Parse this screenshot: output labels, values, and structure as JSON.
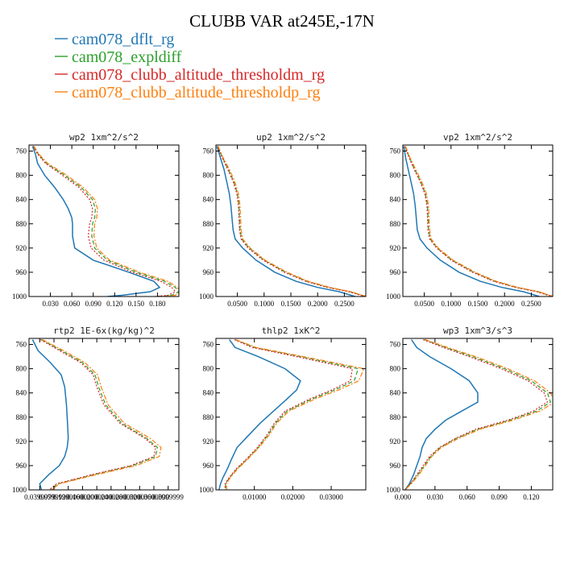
{
  "title": "CLUBB VAR at245E,-17N",
  "legend": [
    {
      "name": "cam078_dflt_rg",
      "color": "#1f77b4",
      "dash": "solid"
    },
    {
      "name": "cam078_expldiff",
      "color": "#2ca02c",
      "dash": "dash"
    },
    {
      "name": "cam078_clubb_altitude_thresholdm_rg",
      "color": "#d62728",
      "dash": "dot"
    },
    {
      "name": "cam078_clubb_altitude_thresholdp_rg",
      "color": "#ff7f0e",
      "dash": "dashdot"
    }
  ],
  "chart_data": [
    {
      "type": "line",
      "title": "wp2  1xm^2/s^2",
      "xlim": [
        0,
        0.21
      ],
      "ylim": [
        1000,
        750
      ],
      "xticks": [
        0.03,
        0.06,
        0.09,
        0.12,
        0.15,
        0.18
      ],
      "xtick_labels": [
        "0.030",
        "0.060",
        "0.090",
        "0.120",
        "0.150",
        "0.180"
      ],
      "yticks": [
        760,
        800,
        840,
        880,
        920,
        960,
        1000
      ],
      "y": [
        752,
        765,
        780,
        800,
        820,
        840,
        855,
        870,
        880,
        900,
        920,
        940,
        960,
        975,
        985,
        992,
        998,
        1000
      ],
      "series": [
        {
          "name": "cam078_dflt_rg",
          "values": [
            0.005,
            0.009,
            0.012,
            0.022,
            0.036,
            0.048,
            0.055,
            0.06,
            0.061,
            0.061,
            0.064,
            0.09,
            0.14,
            0.175,
            0.183,
            0.17,
            0.13,
            0.11
          ]
        },
        {
          "name": "cam078_expldiff",
          "values": [
            0.006,
            0.013,
            0.024,
            0.05,
            0.073,
            0.089,
            0.093,
            0.092,
            0.089,
            0.088,
            0.092,
            0.11,
            0.15,
            0.19,
            0.205,
            0.21,
            0.2,
            0.18
          ]
        },
        {
          "name": "cam078_clubb_altitude_thresholdm_rg",
          "values": [
            0.006,
            0.012,
            0.023,
            0.047,
            0.07,
            0.085,
            0.089,
            0.088,
            0.085,
            0.083,
            0.087,
            0.105,
            0.145,
            0.185,
            0.2,
            0.205,
            0.195,
            0.175
          ]
        },
        {
          "name": "cam078_clubb_altitude_thresholdp_rg",
          "values": [
            0.007,
            0.014,
            0.026,
            0.053,
            0.076,
            0.092,
            0.096,
            0.095,
            0.092,
            0.091,
            0.095,
            0.113,
            0.155,
            0.195,
            0.208,
            0.212,
            0.205,
            0.19
          ]
        }
      ]
    },
    {
      "type": "line",
      "title": "up2  1xm^2/s^2",
      "xlim": [
        0.01,
        0.29
      ],
      "ylim": [
        1000,
        750
      ],
      "xticks": [
        0.05,
        0.1,
        0.15,
        0.2,
        0.25
      ],
      "xtick_labels": [
        "0.0500",
        "0.1000",
        "0.1500",
        "0.2000",
        "0.2500"
      ],
      "yticks": [
        760,
        800,
        840,
        880,
        920,
        960,
        1000
      ],
      "y": [
        752,
        770,
        790,
        810,
        830,
        850,
        870,
        890,
        905,
        920,
        940,
        960,
        975,
        985,
        992,
        1000
      ],
      "series": [
        {
          "name": "cam078_dflt_rg",
          "values": [
            0.012,
            0.018,
            0.025,
            0.03,
            0.035,
            0.038,
            0.04,
            0.042,
            0.046,
            0.06,
            0.085,
            0.12,
            0.16,
            0.2,
            0.24,
            0.27
          ]
        },
        {
          "name": "cam078_expldiff",
          "values": [
            0.013,
            0.022,
            0.033,
            0.043,
            0.05,
            0.053,
            0.054,
            0.055,
            0.058,
            0.072,
            0.1,
            0.14,
            0.18,
            0.22,
            0.26,
            0.29
          ]
        },
        {
          "name": "cam078_clubb_altitude_thresholdm_rg",
          "values": [
            0.013,
            0.021,
            0.032,
            0.042,
            0.049,
            0.052,
            0.053,
            0.054,
            0.057,
            0.07,
            0.098,
            0.138,
            0.178,
            0.218,
            0.258,
            0.288
          ]
        },
        {
          "name": "cam078_clubb_altitude_thresholdp_rg",
          "values": [
            0.014,
            0.023,
            0.035,
            0.045,
            0.052,
            0.055,
            0.056,
            0.057,
            0.06,
            0.074,
            0.102,
            0.143,
            0.183,
            0.223,
            0.262,
            0.292
          ]
        }
      ]
    },
    {
      "type": "line",
      "title": "vp2  1xm^2/s^2",
      "xlim": [
        0.01,
        0.29
      ],
      "ylim": [
        1000,
        750
      ],
      "xticks": [
        0.05,
        0.1,
        0.15,
        0.2,
        0.25
      ],
      "xtick_labels": [
        "0.0500",
        "0.1000",
        "0.1500",
        "0.2000",
        "0.2500"
      ],
      "yticks": [
        760,
        800,
        840,
        880,
        920,
        960,
        1000
      ],
      "y": [
        752,
        770,
        790,
        810,
        830,
        850,
        870,
        890,
        905,
        920,
        940,
        960,
        975,
        985,
        992,
        1000
      ],
      "series": [
        {
          "name": "cam078_dflt_rg",
          "values": [
            0.012,
            0.015,
            0.02,
            0.025,
            0.03,
            0.033,
            0.035,
            0.037,
            0.042,
            0.055,
            0.08,
            0.115,
            0.155,
            0.195,
            0.235,
            0.265
          ]
        },
        {
          "name": "cam078_expldiff",
          "values": [
            0.014,
            0.022,
            0.032,
            0.043,
            0.052,
            0.056,
            0.057,
            0.058,
            0.061,
            0.074,
            0.102,
            0.142,
            0.182,
            0.222,
            0.262,
            0.29
          ]
        },
        {
          "name": "cam078_clubb_altitude_thresholdm_rg",
          "values": [
            0.014,
            0.021,
            0.031,
            0.042,
            0.051,
            0.055,
            0.056,
            0.057,
            0.06,
            0.073,
            0.1,
            0.14,
            0.18,
            0.22,
            0.26,
            0.288
          ]
        },
        {
          "name": "cam078_clubb_altitude_thresholdp_rg",
          "values": [
            0.015,
            0.023,
            0.034,
            0.045,
            0.054,
            0.058,
            0.059,
            0.06,
            0.063,
            0.076,
            0.104,
            0.145,
            0.185,
            0.225,
            0.264,
            0.292
          ]
        }
      ]
    },
    {
      "type": "line",
      "title": "rtp2  1E-6x(kg/kg)^2",
      "xlim": [
        0.01,
        0.43
      ],
      "ylim": [
        1000,
        750
      ],
      "xticks": [
        0.04,
        0.08,
        0.12,
        0.16,
        0.2,
        0.24,
        0.28,
        0.32,
        0.36,
        0.4
      ],
      "xtick_labels": [
        "0.0399999",
        "0.0799999",
        "0.1200000",
        "0.1600000",
        "0.2000000",
        "0.2400000",
        "0.2800000",
        "0.3200000",
        "0.3600000",
        "0.3999999"
      ],
      "yticks": [
        760,
        800,
        840,
        880,
        920,
        960,
        1000
      ],
      "y": [
        752,
        770,
        790,
        810,
        830,
        860,
        890,
        915,
        930,
        945,
        960,
        975,
        990,
        1000
      ],
      "series": [
        {
          "name": "cam078_dflt_rg",
          "values": [
            0.02,
            0.035,
            0.07,
            0.1,
            0.11,
            0.115,
            0.118,
            0.12,
            0.117,
            0.11,
            0.095,
            0.065,
            0.04,
            0.045
          ]
        },
        {
          "name": "cam078_expldiff",
          "values": [
            0.045,
            0.1,
            0.16,
            0.195,
            0.205,
            0.225,
            0.27,
            0.34,
            0.37,
            0.365,
            0.3,
            0.19,
            0.09,
            0.07
          ]
        },
        {
          "name": "cam078_clubb_altitude_thresholdm_rg",
          "values": [
            0.042,
            0.095,
            0.155,
            0.19,
            0.2,
            0.22,
            0.265,
            0.335,
            0.365,
            0.36,
            0.295,
            0.185,
            0.087,
            0.067
          ]
        },
        {
          "name": "cam078_clubb_altitude_thresholdp_rg",
          "values": [
            0.048,
            0.106,
            0.167,
            0.202,
            0.212,
            0.232,
            0.277,
            0.35,
            0.38,
            0.375,
            0.31,
            0.198,
            0.095,
            0.073
          ]
        }
      ]
    },
    {
      "type": "line",
      "title": "thlp2  1xK^2",
      "xlim": [
        0,
        0.039
      ],
      "ylim": [
        1000,
        750
      ],
      "xticks": [
        0.01,
        0.02,
        0.03
      ],
      "xtick_labels": [
        "0.01000",
        "0.02000",
        "0.03000"
      ],
      "yticks": [
        760,
        800,
        840,
        880,
        920,
        960,
        1000
      ],
      "y": [
        752,
        765,
        780,
        800,
        820,
        835,
        850,
        870,
        890,
        910,
        930,
        950,
        965,
        980,
        990,
        1000
      ],
      "series": [
        {
          "name": "cam078_dflt_rg",
          "values": [
            0.0035,
            0.005,
            0.011,
            0.018,
            0.022,
            0.021,
            0.0185,
            0.015,
            0.0115,
            0.0085,
            0.0055,
            0.004,
            0.003,
            0.0018,
            0.0012,
            0.0008
          ]
        },
        {
          "name": "cam078_expldiff",
          "values": [
            0.005,
            0.01,
            0.022,
            0.037,
            0.036,
            0.031,
            0.025,
            0.0185,
            0.0155,
            0.0135,
            0.011,
            0.008,
            0.0055,
            0.0035,
            0.0025,
            0.0025
          ]
        },
        {
          "name": "cam078_clubb_altitude_thresholdm_rg",
          "values": [
            0.0048,
            0.0095,
            0.021,
            0.0355,
            0.035,
            0.0302,
            0.0244,
            0.018,
            0.0152,
            0.0132,
            0.0108,
            0.0078,
            0.0053,
            0.0034,
            0.0024,
            0.0024
          ]
        },
        {
          "name": "cam078_clubb_altitude_thresholdp_rg",
          "values": [
            0.0052,
            0.0105,
            0.0228,
            0.0385,
            0.0372,
            0.032,
            0.0258,
            0.019,
            0.0158,
            0.0138,
            0.0112,
            0.0082,
            0.0057,
            0.0037,
            0.0027,
            0.0028
          ]
        }
      ]
    },
    {
      "type": "line",
      "title": "wp3  1xm^3/s^3",
      "xlim": [
        0,
        0.14
      ],
      "ylim": [
        1000,
        750
      ],
      "xticks": [
        0,
        0.03,
        0.06,
        0.09,
        0.12
      ],
      "xtick_labels": [
        "0.000",
        "0.030",
        "0.060",
        "0.090",
        "0.120"
      ],
      "yticks": [
        760,
        800,
        840,
        880,
        920,
        960,
        1000
      ],
      "y": [
        752,
        765,
        780,
        800,
        820,
        840,
        855,
        870,
        885,
        900,
        915,
        930,
        945,
        960,
        975,
        990,
        1000
      ],
      "series": [
        {
          "name": "cam078_dflt_rg",
          "values": [
            0.008,
            0.013,
            0.025,
            0.045,
            0.062,
            0.07,
            0.07,
            0.055,
            0.04,
            0.03,
            0.022,
            0.018,
            0.016,
            0.013,
            0.01,
            0.006,
            0.002
          ]
        },
        {
          "name": "cam078_expldiff",
          "values": [
            0.02,
            0.04,
            0.065,
            0.095,
            0.12,
            0.135,
            0.138,
            0.125,
            0.1,
            0.07,
            0.05,
            0.035,
            0.026,
            0.02,
            0.014,
            0.007,
            0.002
          ]
        },
        {
          "name": "cam078_clubb_altitude_thresholdm_rg",
          "values": [
            0.019,
            0.038,
            0.062,
            0.092,
            0.117,
            0.132,
            0.135,
            0.122,
            0.098,
            0.068,
            0.049,
            0.034,
            0.025,
            0.019,
            0.013,
            0.007,
            0.002
          ]
        },
        {
          "name": "cam078_clubb_altitude_thresholdp_rg",
          "values": [
            0.021,
            0.042,
            0.068,
            0.098,
            0.123,
            0.138,
            0.142,
            0.128,
            0.103,
            0.072,
            0.052,
            0.036,
            0.027,
            0.021,
            0.015,
            0.008,
            0.002
          ]
        }
      ]
    }
  ]
}
